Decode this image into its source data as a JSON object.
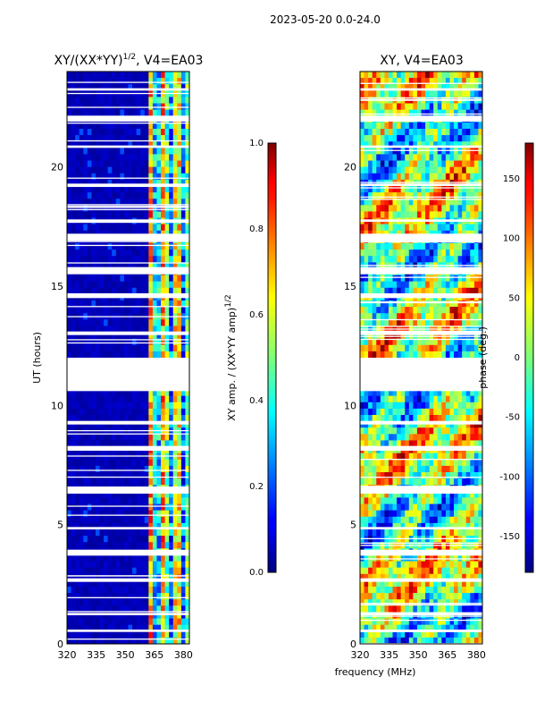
{
  "header": {
    "title": "2023-05-20 0.0-24.0"
  },
  "chart_data": [
    {
      "type": "heatmap",
      "title": "XY/(XX*YY)",
      "title_exponent": "1/2",
      "title_suffix": ", V4=EA03",
      "ylabel": "UT (hours)",
      "xlabel": "",
      "xlim": [
        320,
        383
      ],
      "ylim": [
        0,
        24
      ],
      "x_ticks": [
        "320",
        "335",
        "350",
        "365",
        "380"
      ],
      "y_ticks": [
        "0",
        "5",
        "10",
        "15",
        "20"
      ],
      "colorbar": {
        "label": "XY amp. / (XX*YY amp)",
        "label_exponent": "1/2",
        "range": [
          0.0,
          1.0
        ],
        "ticks": [
          "0.0",
          "0.2",
          "0.4",
          "0.6",
          "0.8",
          "1.0"
        ],
        "colormap": "jet"
      },
      "gaps_hours": [
        [
          10.6,
          12.0
        ],
        [
          12.95,
          13.1
        ],
        [
          16.9,
          17.2
        ],
        [
          6.3,
          6.6
        ],
        [
          3.7,
          3.95
        ],
        [
          8.1,
          8.3
        ],
        [
          15.5,
          15.8
        ],
        [
          14.5,
          14.7
        ],
        [
          21.9,
          22.15
        ],
        [
          2.6,
          2.75
        ],
        [
          1.2,
          1.3
        ],
        [
          9.2,
          9.35
        ],
        [
          19.2,
          19.3
        ],
        [
          20.8,
          20.9
        ],
        [
          0.5,
          0.6
        ],
        [
          4.8,
          4.9
        ],
        [
          17.7,
          17.8
        ],
        [
          23.2,
          23.3
        ]
      ]
    },
    {
      "type": "heatmap",
      "title": "XY, V4=EA03",
      "ylabel": "",
      "xlabel": "frequency (MHz)",
      "xlim": [
        320,
        383
      ],
      "ylim": [
        0,
        24
      ],
      "x_ticks": [
        "320",
        "335",
        "350",
        "365",
        "380"
      ],
      "y_ticks": [
        "0",
        "5",
        "10",
        "15",
        "20"
      ],
      "colorbar": {
        "label": "phase (deg.)",
        "range": [
          -180,
          180
        ],
        "ticks": [
          "-150",
          "-100",
          "-50",
          "0",
          "50",
          "100",
          "150"
        ],
        "colormap": "jet"
      },
      "gaps_hours": [
        [
          10.6,
          12.0
        ],
        [
          12.95,
          13.1
        ],
        [
          16.9,
          17.2
        ],
        [
          6.3,
          6.6
        ],
        [
          3.7,
          3.95
        ],
        [
          8.1,
          8.3
        ],
        [
          15.5,
          15.8
        ],
        [
          14.5,
          14.7
        ],
        [
          21.9,
          22.15
        ],
        [
          2.6,
          2.75
        ],
        [
          1.2,
          1.3
        ],
        [
          9.2,
          9.35
        ],
        [
          19.2,
          19.3
        ],
        [
          20.8,
          20.9
        ],
        [
          0.5,
          0.6
        ],
        [
          4.8,
          4.9
        ],
        [
          17.7,
          17.8
        ],
        [
          23.2,
          23.3
        ]
      ]
    }
  ]
}
